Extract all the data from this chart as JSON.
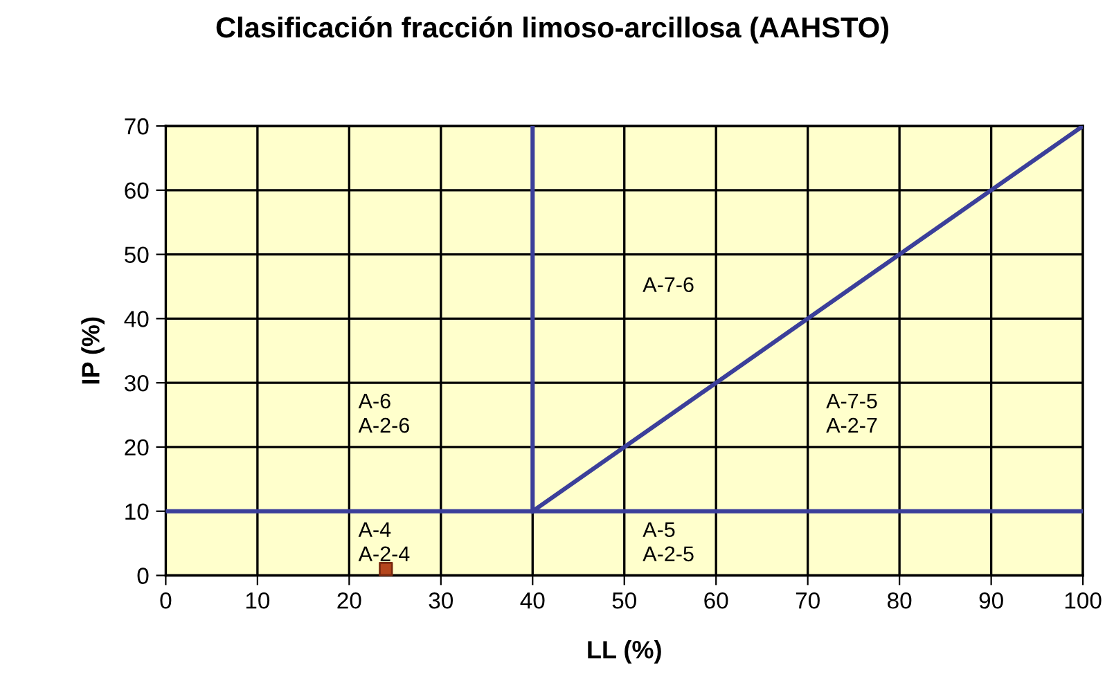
{
  "chart_data": {
    "type": "line",
    "title": "Clasificación fracción limoso-arcillosa (AAHSTO)",
    "xlabel": "LL (%)",
    "ylabel": "IP (%)",
    "xlim": [
      0,
      100
    ],
    "xticks": [
      0,
      10,
      20,
      30,
      40,
      50,
      60,
      70,
      80,
      90,
      100
    ],
    "ylim": [
      0,
      70
    ],
    "yticks": [
      0,
      10,
      20,
      30,
      40,
      50,
      60,
      70
    ],
    "grid": true,
    "marker": "none",
    "line_style": "solid",
    "series": [
      {
        "color": "#3b3f9a",
        "x": [
          0,
          100
        ],
        "values": [
          10,
          10
        ]
      },
      {
        "color": "#3b3f9a",
        "x": [
          40,
          40
        ],
        "values": [
          10,
          70
        ]
      },
      {
        "color": "#3b3f9a",
        "x": [
          40,
          100
        ],
        "values": [
          10,
          70
        ]
      },
      {
        "type": "scatter",
        "color": "#b5461c",
        "marker": "square",
        "x": [
          24
        ],
        "values": [
          1
        ]
      }
    ],
    "annotations": [
      "A-7-6",
      "A-6\nA-2-6",
      "A-7-5\nA-2-7",
      "A-4\nA-2-4",
      "A-5\nA-2-5"
    ]
  }
}
